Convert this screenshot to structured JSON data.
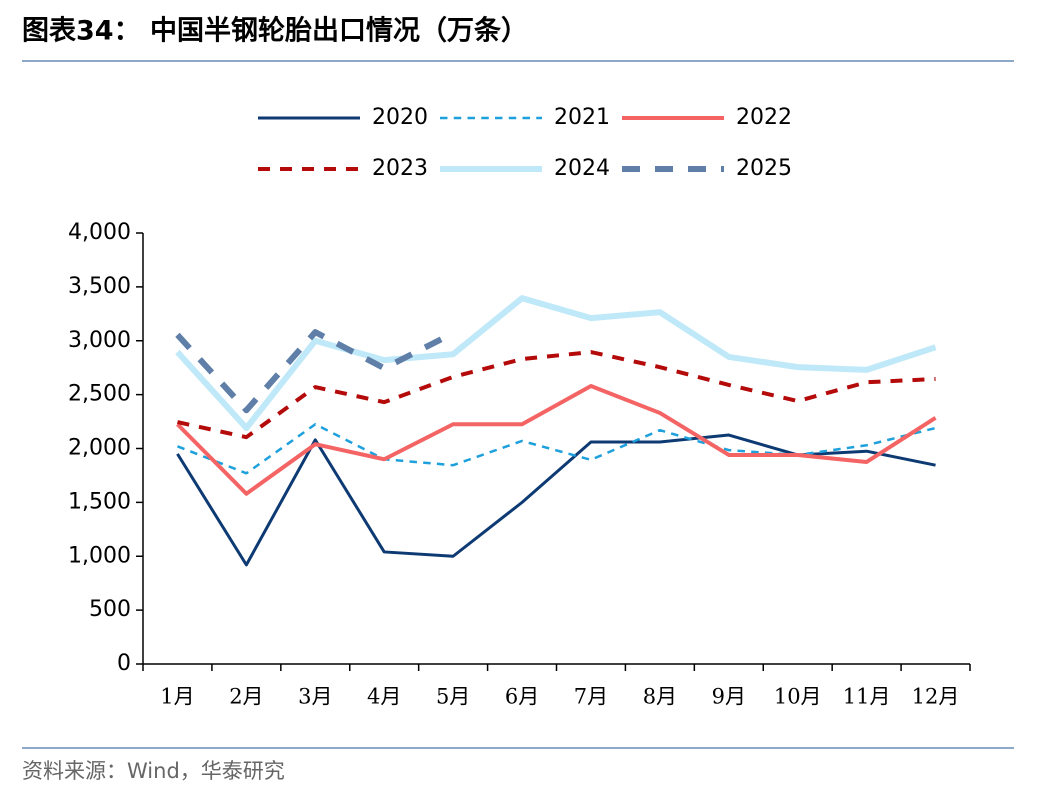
{
  "chart_data": {
    "type": "line",
    "title": "图表34：  中国半钢轮胎出口情况（万条）",
    "source": "资料来源：Wind，华泰研究",
    "categories": [
      "1月",
      "2月",
      "3月",
      "4月",
      "5月",
      "6月",
      "7月",
      "8月",
      "9月",
      "10月",
      "11月",
      "12月"
    ],
    "ylim": [
      0,
      4000
    ],
    "yticks": [
      0,
      500,
      {
        "value": 1000,
        "label": "1,000"
      },
      {
        "value": 1500,
        "label": "1,500"
      },
      {
        "value": 2000,
        "label": "2,000"
      },
      {
        "value": 2500,
        "label": "2,500"
      },
      {
        "value": 3000,
        "label": "3,000"
      },
      {
        "value": 3500,
        "label": "3,500"
      },
      {
        "value": 4000,
        "label": "4,000"
      }
    ],
    "grid": false,
    "legend": "top",
    "series": [
      {
        "name": "2020",
        "color": "#0d3a73",
        "style": "solid",
        "width": 3,
        "values": [
          1950,
          920,
          2080,
          1040,
          1000,
          1500,
          2060,
          2060,
          2125,
          1940,
          1975,
          1845
        ]
      },
      {
        "name": "2021",
        "color": "#1ea0dc",
        "style": "dashed",
        "width": 2.5,
        "values": [
          2020,
          1770,
          2225,
          1900,
          1845,
          2070,
          1895,
          2170,
          1985,
          1940,
          2030,
          2190
        ]
      },
      {
        "name": "2022",
        "color": "#f46464",
        "style": "solid",
        "width": 4,
        "values": [
          2225,
          1580,
          2040,
          1900,
          2225,
          2225,
          2580,
          2330,
          1940,
          1940,
          1875,
          2285
        ]
      },
      {
        "name": "2023",
        "color": "#b40a0a",
        "style": "dashed",
        "width": 4,
        "values": [
          2245,
          2105,
          2570,
          2430,
          2665,
          2830,
          2895,
          2755,
          2590,
          2440,
          2615,
          2645
        ]
      },
      {
        "name": "2024",
        "color": "#bfe8f8",
        "style": "solid",
        "width": 6,
        "values": [
          2895,
          2190,
          3000,
          2820,
          2875,
          3395,
          3210,
          3265,
          2850,
          2755,
          2730,
          2940
        ]
      },
      {
        "name": "2025",
        "color": "#5f7fa8",
        "style": "dashed",
        "width": 6,
        "values": [
          3055,
          2355,
          3080,
          2745,
          3070,
          null,
          null,
          null,
          null,
          null,
          null,
          null
        ]
      }
    ]
  }
}
